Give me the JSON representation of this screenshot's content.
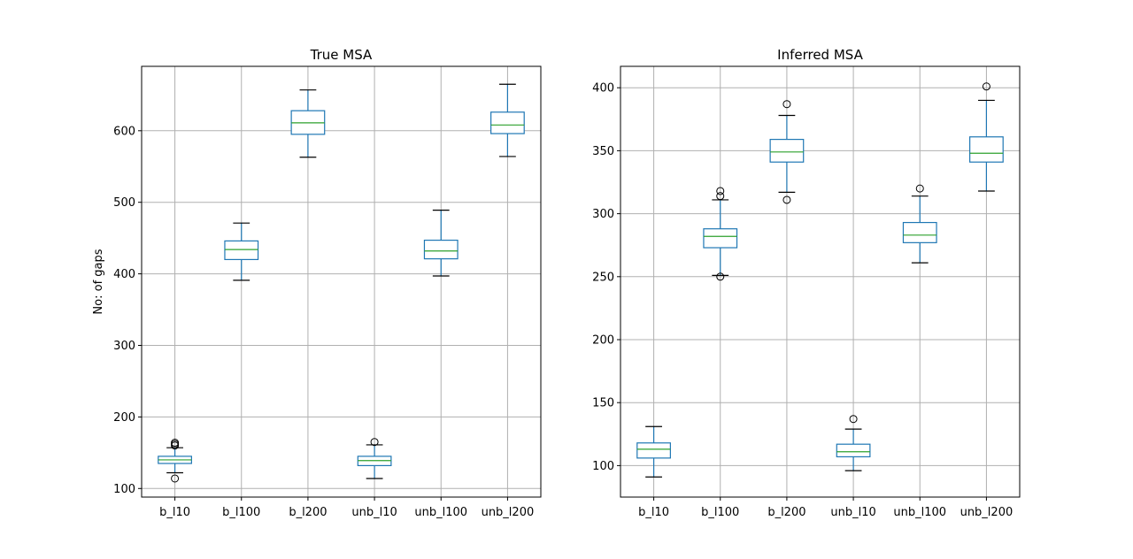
{
  "chart_data": [
    {
      "type": "box",
      "title": "True MSA",
      "ylabel": "No: of gaps",
      "categories": [
        "b_l10",
        "b_l100",
        "b_l200",
        "unb_l10",
        "unb_l100",
        "unb_l200"
      ],
      "ylim": [
        88,
        690
      ],
      "yticks": [
        100,
        200,
        300,
        400,
        500,
        600
      ],
      "grid": true,
      "boxes": [
        {
          "whislo": 122,
          "q1": 135,
          "med": 140,
          "q3": 145,
          "whishi": 157,
          "fliers": [
            114,
            160,
            162,
            164
          ]
        },
        {
          "whislo": 391,
          "q1": 420,
          "med": 434,
          "q3": 446,
          "whishi": 471,
          "fliers": []
        },
        {
          "whislo": 563,
          "q1": 595,
          "med": 611,
          "q3": 628,
          "whishi": 657,
          "fliers": []
        },
        {
          "whislo": 114,
          "q1": 132,
          "med": 139,
          "q3": 145,
          "whishi": 161,
          "fliers": [
            165
          ]
        },
        {
          "whislo": 397,
          "q1": 421,
          "med": 432,
          "q3": 447,
          "whishi": 489,
          "fliers": []
        },
        {
          "whislo": 564,
          "q1": 596,
          "med": 608,
          "q3": 626,
          "whishi": 665,
          "fliers": []
        }
      ]
    },
    {
      "type": "box",
      "title": "Inferred MSA",
      "ylabel": "",
      "categories": [
        "b_l10",
        "b_l100",
        "b_l200",
        "unb_l10",
        "unb_l100",
        "unb_l200"
      ],
      "ylim": [
        75,
        417
      ],
      "yticks": [
        100,
        150,
        200,
        250,
        300,
        350,
        400
      ],
      "grid": true,
      "boxes": [
        {
          "whislo": 91,
          "q1": 106,
          "med": 113,
          "q3": 118,
          "whishi": 131,
          "fliers": []
        },
        {
          "whislo": 251,
          "q1": 273,
          "med": 282,
          "q3": 288,
          "whishi": 311,
          "fliers": [
            250,
            314,
            318
          ]
        },
        {
          "whislo": 317,
          "q1": 341,
          "med": 349,
          "q3": 359,
          "whishi": 378,
          "fliers": [
            311,
            387
          ]
        },
        {
          "whislo": 96,
          "q1": 107,
          "med": 111,
          "q3": 117,
          "whishi": 129,
          "fliers": [
            137
          ]
        },
        {
          "whislo": 261,
          "q1": 277,
          "med": 283,
          "q3": 293,
          "whishi": 314,
          "fliers": [
            320
          ]
        },
        {
          "whislo": 318,
          "q1": 341,
          "med": 348,
          "q3": 361,
          "whishi": 390,
          "fliers": [
            401
          ]
        }
      ]
    }
  ],
  "colors": {
    "box": "#1f77b4",
    "median": "#2ca02c",
    "whisker_cap": "#000000",
    "grid": "#b0b0b0",
    "axes": "#000000"
  }
}
